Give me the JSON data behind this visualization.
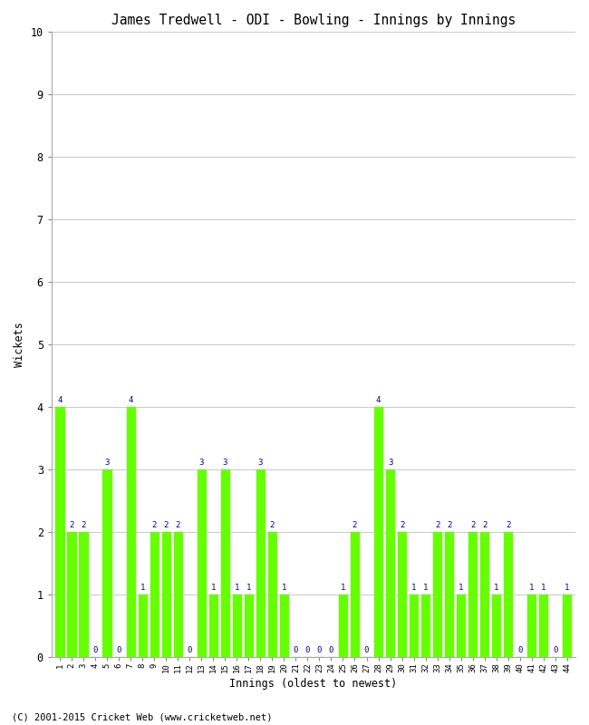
{
  "title": "James Tredwell - ODI - Bowling - Innings by Innings",
  "xlabel": "Innings (oldest to newest)",
  "ylabel": "Wickets",
  "ylim": [
    0,
    10
  ],
  "bar_color": "#66FF00",
  "label_color": "#000099",
  "background_color": "#ffffff",
  "grid_color": "#cccccc",
  "footer": "(C) 2001-2015 Cricket Web (www.cricketweb.net)",
  "innings": [
    1,
    2,
    3,
    4,
    5,
    6,
    7,
    8,
    9,
    10,
    11,
    12,
    13,
    14,
    15,
    16,
    17,
    18,
    19,
    20,
    21,
    22,
    23,
    24,
    25,
    26,
    27,
    28,
    29,
    30,
    31,
    32,
    33,
    34,
    35,
    36,
    37,
    38,
    39,
    40,
    41,
    42,
    43,
    44
  ],
  "wickets": [
    4,
    2,
    2,
    0,
    3,
    0,
    4,
    1,
    2,
    2,
    2,
    0,
    3,
    1,
    3,
    1,
    1,
    3,
    2,
    1,
    0,
    0,
    0,
    0,
    1,
    2,
    0,
    4,
    3,
    2,
    1,
    1,
    2,
    2,
    1,
    2,
    2,
    1,
    2,
    0,
    1,
    1,
    0,
    1
  ]
}
